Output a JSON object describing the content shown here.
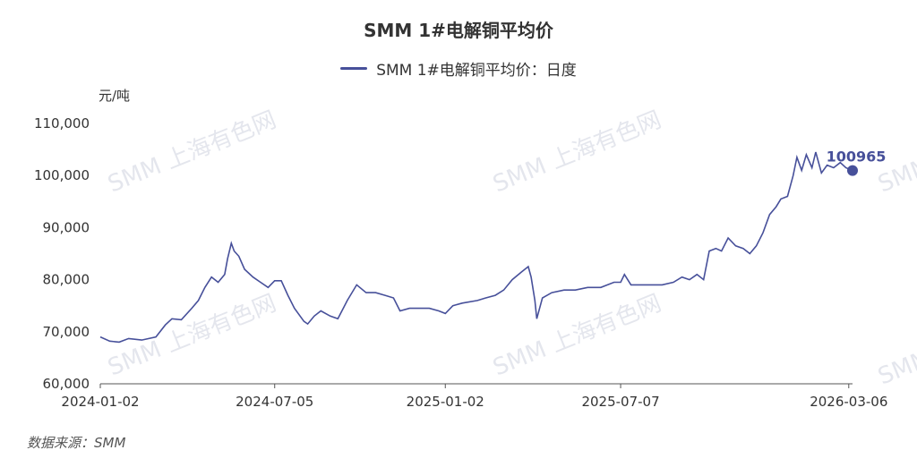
{
  "header": {
    "title": "SMM 1#电解铜平均价"
  },
  "legend": {
    "label": "SMM 1#电解铜平均价：日度"
  },
  "unit_label": "元/吨",
  "source_label": "数据来源：SMM",
  "watermark_text": "SMM 上海有色网",
  "colors": {
    "line": "#47509a",
    "axis": "#555555",
    "watermark": "#cfd3df"
  },
  "chart_data": {
    "type": "line",
    "title": "SMM 1#电解铜平均价",
    "series": [
      {
        "name": "SMM 1#电解铜平均价：日度",
        "points": [
          [
            "2024-01-02",
            69000
          ],
          [
            "2024-01-12",
            68200
          ],
          [
            "2024-01-22",
            68000
          ],
          [
            "2024-02-01",
            68700
          ],
          [
            "2024-02-15",
            68400
          ],
          [
            "2024-03-01",
            69000
          ],
          [
            "2024-03-11",
            71300
          ],
          [
            "2024-03-18",
            72500
          ],
          [
            "2024-03-28",
            72300
          ],
          [
            "2024-04-08",
            74500
          ],
          [
            "2024-04-15",
            76000
          ],
          [
            "2024-04-22",
            78500
          ],
          [
            "2024-04-29",
            80500
          ],
          [
            "2024-05-06",
            79500
          ],
          [
            "2024-05-13",
            81000
          ],
          [
            "2024-05-16",
            84000
          ],
          [
            "2024-05-20",
            87000
          ],
          [
            "2024-05-23",
            85500
          ],
          [
            "2024-05-28",
            84500
          ],
          [
            "2024-06-03",
            82000
          ],
          [
            "2024-06-12",
            80500
          ],
          [
            "2024-06-20",
            79500
          ],
          [
            "2024-06-28",
            78500
          ],
          [
            "2024-07-05",
            79800
          ],
          [
            "2024-07-12",
            79800
          ],
          [
            "2024-07-19",
            77000
          ],
          [
            "2024-07-26",
            74500
          ],
          [
            "2024-08-05",
            72000
          ],
          [
            "2024-08-09",
            71500
          ],
          [
            "2024-08-16",
            73000
          ],
          [
            "2024-08-23",
            74000
          ],
          [
            "2024-09-02",
            73000
          ],
          [
            "2024-09-10",
            72500
          ],
          [
            "2024-09-20",
            76000
          ],
          [
            "2024-09-30",
            79000
          ],
          [
            "2024-10-10",
            77500
          ],
          [
            "2024-10-20",
            77500
          ],
          [
            "2024-10-30",
            77000
          ],
          [
            "2024-11-08",
            76500
          ],
          [
            "2024-11-15",
            74000
          ],
          [
            "2024-11-25",
            74500
          ],
          [
            "2024-12-05",
            74500
          ],
          [
            "2024-12-16",
            74500
          ],
          [
            "2024-12-26",
            74000
          ],
          [
            "2025-01-02",
            73500
          ],
          [
            "2025-01-10",
            75000
          ],
          [
            "2025-01-20",
            75500
          ],
          [
            "2025-02-05",
            76000
          ],
          [
            "2025-02-14",
            76500
          ],
          [
            "2025-02-24",
            77000
          ],
          [
            "2025-03-05",
            78000
          ],
          [
            "2025-03-14",
            80000
          ],
          [
            "2025-03-24",
            81500
          ],
          [
            "2025-03-31",
            82500
          ],
          [
            "2025-04-03",
            80500
          ],
          [
            "2025-04-07",
            76000
          ],
          [
            "2025-04-09",
            72500
          ],
          [
            "2025-04-15",
            76500
          ],
          [
            "2025-04-25",
            77500
          ],
          [
            "2025-05-08",
            78000
          ],
          [
            "2025-05-20",
            78000
          ],
          [
            "2025-06-02",
            78500
          ],
          [
            "2025-06-16",
            78500
          ],
          [
            "2025-06-30",
            79500
          ],
          [
            "2025-07-07",
            79500
          ],
          [
            "2025-07-11",
            81000
          ],
          [
            "2025-07-18",
            79000
          ],
          [
            "2025-07-28",
            79000
          ],
          [
            "2025-08-08",
            79000
          ],
          [
            "2025-08-20",
            79000
          ],
          [
            "2025-09-01",
            79500
          ],
          [
            "2025-09-10",
            80500
          ],
          [
            "2025-09-18",
            80000
          ],
          [
            "2025-09-26",
            81000
          ],
          [
            "2025-10-03",
            80000
          ],
          [
            "2025-10-09",
            85500
          ],
          [
            "2025-10-16",
            86000
          ],
          [
            "2025-10-22",
            85500
          ],
          [
            "2025-10-29",
            88000
          ],
          [
            "2025-11-06",
            86500
          ],
          [
            "2025-11-14",
            86000
          ],
          [
            "2025-11-21",
            85000
          ],
          [
            "2025-11-28",
            86500
          ],
          [
            "2025-12-05",
            89000
          ],
          [
            "2025-12-12",
            92500
          ],
          [
            "2025-12-19",
            94000
          ],
          [
            "2025-12-24",
            95500
          ],
          [
            "2025-12-31",
            96000
          ],
          [
            "2026-01-06",
            100000
          ],
          [
            "2026-01-10",
            103500
          ],
          [
            "2026-01-15",
            101000
          ],
          [
            "2026-01-20",
            104000
          ],
          [
            "2026-01-26",
            101500
          ],
          [
            "2026-01-30",
            104500
          ],
          [
            "2026-02-05",
            100500
          ],
          [
            "2026-02-11",
            102000
          ],
          [
            "2026-02-18",
            101500
          ],
          [
            "2026-02-25",
            102500
          ],
          [
            "2026-03-03",
            101500
          ],
          [
            "2026-03-10",
            100965
          ]
        ]
      }
    ],
    "last_point_label": "100965",
    "x_ticks": [
      "2024-01-02",
      "2024-07-05",
      "2025-01-02",
      "2025-07-07",
      "2026-03-06"
    ],
    "y_ticks": [
      "60,000",
      "70,000",
      "80,000",
      "90,000",
      "100,000",
      "110,000"
    ],
    "ylim": [
      60000,
      110000
    ],
    "xlim": [
      "2024-01-02",
      "2026-03-10"
    ],
    "ylabel": "元/吨",
    "grid": false,
    "legend_position": "top-center"
  }
}
